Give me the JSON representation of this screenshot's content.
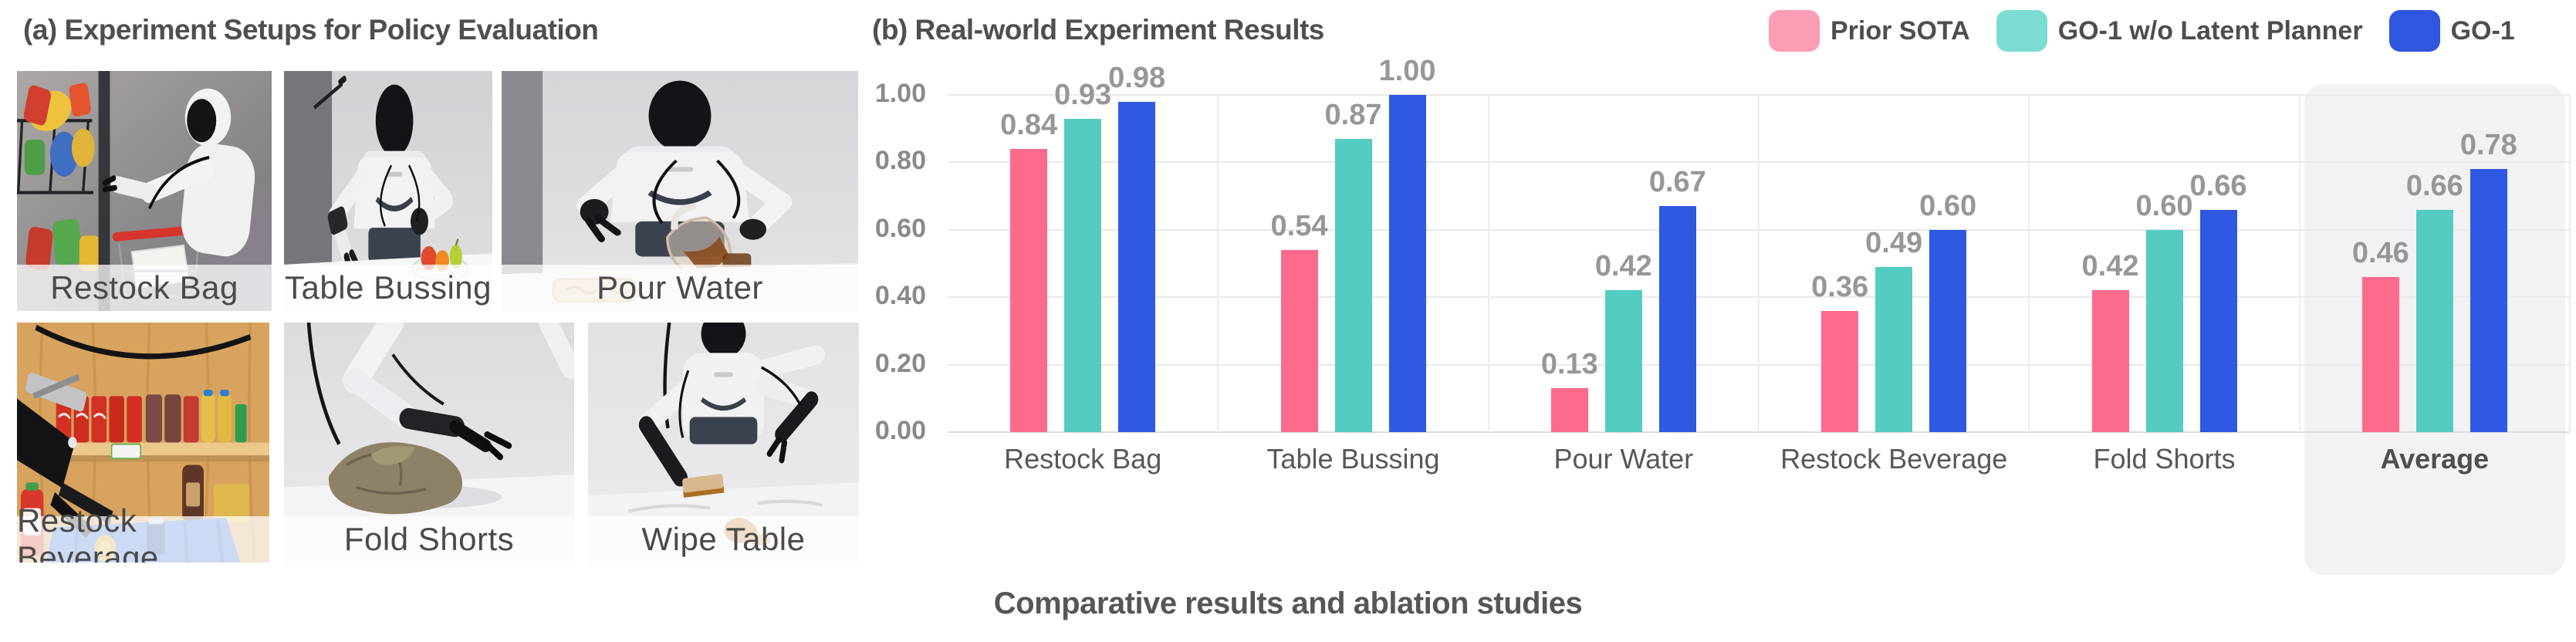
{
  "panel_a": {
    "title": "(a) Experiment Setups for Policy Evaluation",
    "photos": [
      {
        "label": "Restock Bag"
      },
      {
        "label": "Table Bussing"
      },
      {
        "label": "Pour Water"
      },
      {
        "label": "Restock Beverage"
      },
      {
        "label": "Fold Shorts"
      },
      {
        "label": "Wipe Table"
      }
    ]
  },
  "panel_b": {
    "title": "(b) Real-world Experiment Results",
    "caption": "Comparative results and ablation studies",
    "legend": [
      {
        "label": "Prior SOTA",
        "swatch_color": "#FB9DB4"
      },
      {
        "label": "GO-1 w/o Latent Planner",
        "swatch_color": "#7CDCD1"
      },
      {
        "label": "GO-1",
        "swatch_color": "#2E56DE"
      }
    ]
  },
  "chart_data": {
    "type": "bar",
    "title": "(b) Real-world Experiment Results",
    "categories": [
      "Restock Bag",
      "Table Bussing",
      "Pour Water",
      "Restock Beverage",
      "Fold Shorts",
      "Average"
    ],
    "series": [
      {
        "name": "Prior SOTA",
        "color": "#FC6A8C",
        "values": [
          0.84,
          0.54,
          0.13,
          0.36,
          0.42,
          0.46
        ]
      },
      {
        "name": "GO-1 w/o Latent Planner",
        "color": "#54CCC1",
        "values": [
          0.93,
          0.87,
          0.42,
          0.49,
          0.6,
          0.66
        ]
      },
      {
        "name": "GO-1",
        "color": "#2F59E1",
        "values": [
          0.98,
          1.0,
          0.67,
          0.6,
          0.66,
          0.78
        ]
      }
    ],
    "xlabel": "",
    "ylabel": "",
    "ylim": [
      0,
      1.0
    ],
    "yticks": [
      0.0,
      0.2,
      0.4,
      0.6,
      0.8,
      1.0
    ],
    "grid": true,
    "legend_position": "top-right",
    "highlight_category": "Average",
    "value_labels": true
  }
}
